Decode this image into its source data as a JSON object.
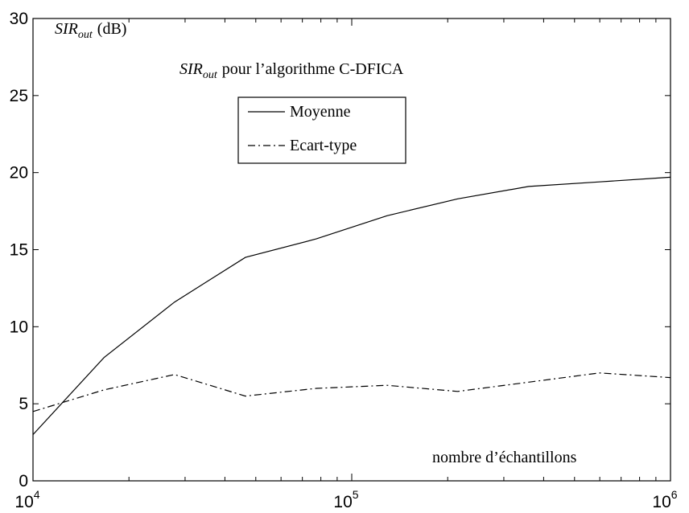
{
  "chart_data": {
    "type": "line",
    "title": {
      "symbol": "SIR",
      "subscript": "out",
      "text": "pour l’algorithme C-DFICA"
    },
    "ylabel": {
      "symbol": "SIR",
      "subscript": "out",
      "unit": "(dB)"
    },
    "xlabel": "nombre d’échantillons",
    "xscale": "log",
    "xlim": [
      10000,
      1000000
    ],
    "ylim": [
      0,
      30
    ],
    "xticks": [
      {
        "base": "10",
        "exp": "4"
      },
      {
        "base": "10",
        "exp": "5"
      },
      {
        "base": "10",
        "exp": "6"
      }
    ],
    "yticks": [
      "0",
      "5",
      "10",
      "15",
      "20",
      "25",
      "30"
    ],
    "grid": false,
    "legend_position": "top-center",
    "series": [
      {
        "name": "Moyenne",
        "style": "solid",
        "color": "#000000",
        "x": [
          10000,
          16700,
          27800,
          46400,
          77400,
          129000,
          215000,
          359000,
          599000,
          1000000
        ],
        "y": [
          3.0,
          8.0,
          11.6,
          14.5,
          15.7,
          17.2,
          18.3,
          19.1,
          19.4,
          19.7
        ]
      },
      {
        "name": "Ecart-type",
        "style": "dashdot",
        "color": "#000000",
        "x": [
          10000,
          16700,
          27800,
          46400,
          77400,
          129000,
          215000,
          359000,
          599000,
          1000000
        ],
        "y": [
          4.5,
          5.9,
          6.9,
          5.5,
          6.0,
          6.2,
          5.8,
          6.4,
          7.0,
          6.7
        ]
      }
    ]
  }
}
